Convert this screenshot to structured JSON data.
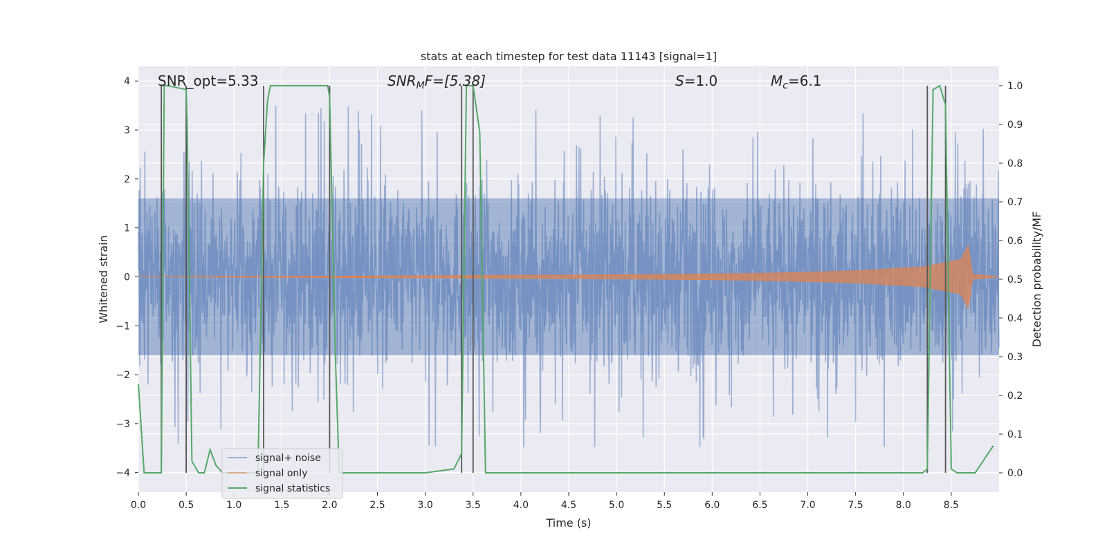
{
  "chart_data": {
    "type": "line",
    "title": "stats at each timestep for test data 11143 [signal=1]",
    "xlabel": "Time (s)",
    "ylabel": "Whitened strain",
    "y2label": "Detection probability/MF",
    "xlim": [
      0.0,
      9.0
    ],
    "ylim": [
      -4.4,
      4.3
    ],
    "y2lim": [
      -0.05,
      1.05
    ],
    "x_ticks": [
      "0.0",
      "0.5",
      "1.0",
      "1.5",
      "2.0",
      "2.5",
      "3.0",
      "3.5",
      "4.0",
      "4.5",
      "5.0",
      "5.5",
      "6.0",
      "6.5",
      "7.0",
      "7.5",
      "8.0",
      "8.5"
    ],
    "y_ticks": [
      "4",
      "3",
      "2",
      "1",
      "0",
      "−1",
      "−2",
      "−3",
      "−4"
    ],
    "y2_ticks": [
      "1.0",
      "0.9",
      "0.8",
      "0.7",
      "0.6",
      "0.5",
      "0.4",
      "0.3",
      "0.2",
      "0.1",
      "0.0"
    ],
    "grid": true,
    "legend_position": "lower-left",
    "colors": {
      "background": "#eaeaf2",
      "grid": "#ffffff",
      "noise": "#4c72b0",
      "signal": "#dd8452",
      "statistics": "#55a868",
      "markers": "#555555"
    },
    "series": [
      {
        "name": "signal+ noise",
        "description_values": "noise strain, approx. ±1.6 envelope with spikes up to about ±3.5",
        "amplitude_band": [
          -1.6,
          1.6
        ],
        "peak_range": [
          -4.0,
          3.5
        ]
      },
      {
        "name": "signal only",
        "chirp_end_time": 8.7,
        "peak_amplitude": 0.65,
        "amplitude_points": [
          [
            0.0,
            0.0
          ],
          [
            3.0,
            0.02
          ],
          [
            5.0,
            0.04
          ],
          [
            6.5,
            0.07
          ],
          [
            7.5,
            0.12
          ],
          [
            8.2,
            0.2
          ],
          [
            8.6,
            0.35
          ],
          [
            8.68,
            0.65
          ],
          [
            8.72,
            0.05
          ],
          [
            9.0,
            0.0
          ]
        ]
      },
      {
        "name": "signal statistics",
        "axis": "right",
        "x": [
          0.0,
          0.06,
          0.2,
          0.24,
          0.27,
          0.31,
          0.5,
          0.51,
          0.56,
          0.63,
          0.69,
          0.75,
          0.81,
          0.88,
          0.94,
          1.06,
          1.25,
          1.31,
          1.35,
          1.38,
          1.44,
          1.63,
          1.88,
          1.98,
          2.0,
          2.06,
          2.1,
          2.13,
          2.5,
          3.0,
          3.3,
          3.38,
          3.43,
          3.5,
          3.57,
          3.63,
          3.8,
          5.0,
          7.0,
          8.2,
          8.25,
          8.31,
          8.38,
          8.44,
          8.5,
          8.56,
          8.63,
          8.7,
          8.75,
          8.94
        ],
        "values": [
          0.23,
          0.0,
          0.0,
          0.0,
          1.0,
          1.0,
          0.99,
          0.9,
          0.03,
          0.0,
          0.0,
          0.06,
          0.02,
          0.0,
          0.0,
          0.0,
          0.0,
          0.8,
          0.96,
          1.0,
          1.0,
          1.0,
          1.0,
          1.0,
          0.97,
          0.3,
          0.0,
          0.0,
          0.0,
          0.0,
          0.01,
          0.05,
          1.0,
          1.0,
          0.88,
          0.0,
          0.0,
          0.0,
          0.0,
          0.0,
          0.01,
          0.99,
          1.0,
          0.95,
          0.01,
          0.0,
          0.0,
          0.0,
          0.0,
          0.07
        ]
      }
    ],
    "vertical_markers": [
      0.24,
      0.5,
      1.31,
      2.0,
      3.38,
      3.5,
      8.25,
      8.44
    ],
    "annotations": {
      "snr_opt": "SNR_opt=5.33",
      "snr_mf_main": "SNR",
      "snr_mf_sub": "M",
      "snr_mf_tail": "F=[5.38]",
      "s_italic": "S",
      "s_value": "=1.0",
      "mc_main": "M",
      "mc_sub": "c",
      "mc_value": "=6.1"
    }
  }
}
